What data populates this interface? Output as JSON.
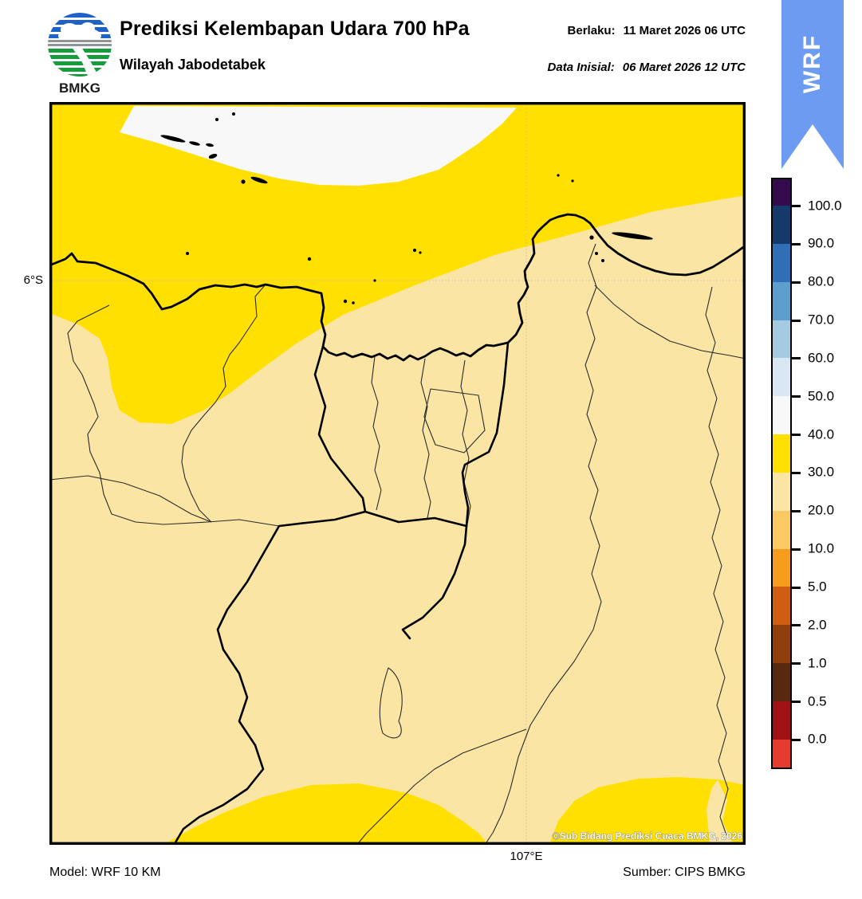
{
  "header": {
    "logo_text": "BMKG",
    "title": "Prediksi Kelembapan Udara 700 hPa",
    "subtitle": "Wilayah Jabodetabek",
    "valid_label": "Berlaku:",
    "valid_value": "11 Maret 2026 06 UTC",
    "init_label": "Data Inisial:",
    "init_value": "06 Maret 2026 12 UTC"
  },
  "ribbon": {
    "label": "WRF",
    "color": "#6D9BF2"
  },
  "map": {
    "lat_label": "6°S",
    "lon_label": "107°E",
    "copyright": "©Sub Bidang Prediksi Cuaca BMKG, 2026",
    "colors": {
      "sea_yellow": "#FFE000",
      "land_cream": "#FBE5A4",
      "white_zone": "#F8F8F8",
      "coastline": "#000000",
      "admin_line": "#2B2B2B",
      "gridline": "#C8C2A0"
    }
  },
  "colorbar": {
    "tick_labels": [
      "100.0",
      "90.0",
      "80.0",
      "70.0",
      "60.0",
      "50.0",
      "40.0",
      "30.0",
      "20.0",
      "10.0",
      "5.0",
      "2.0",
      "1.0",
      "0.5",
      "0.0"
    ],
    "segment_colors": [
      "#350B4E",
      "#16396B",
      "#2F6FB6",
      "#5C9FCE",
      "#A5CBE1",
      "#D8E7F3",
      "#F8F8F8",
      "#FFE000",
      "#FBE5A4",
      "#FBC964",
      "#F59C1C",
      "#CE5F10",
      "#8F3E0C",
      "#57280E",
      "#A01115",
      "#E63C30"
    ]
  },
  "footer": {
    "model": "Model: WRF 10 KM",
    "source": "Sumber: CIPS BMKG"
  }
}
